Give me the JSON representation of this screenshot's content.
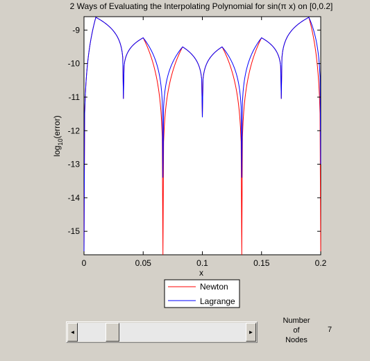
{
  "window": {
    "background": "#d4d0c8"
  },
  "chart_data": {
    "type": "line",
    "title": "2 Ways of Evaluating the Interpolating Polynomial for sin(π x) on [0,0.2]",
    "xlabel": "x",
    "ylabel_main": "log",
    "ylabel_sub": "10",
    "ylabel_rest": "(error)",
    "xlim": [
      0,
      0.2
    ],
    "ylim": [
      -15.7,
      -8.6
    ],
    "xticks": [
      0,
      0.05,
      0.1,
      0.15,
      0.2
    ],
    "xtick_labels": [
      "0",
      "0.05",
      "0.1",
      "0.15",
      "0.2"
    ],
    "yticks": [
      -9,
      -10,
      -11,
      -12,
      -13,
      -14,
      -15
    ],
    "ytick_labels": [
      "-9",
      "-10",
      "-11",
      "-12",
      "-13",
      "-14",
      "-15"
    ],
    "grid": false,
    "legend_placement": "bottom-center",
    "nodes": [
      0,
      0.0333,
      0.0667,
      0.1,
      0.1333,
      0.1667,
      0.2
    ],
    "series": [
      {
        "name": "Newton",
        "color": "#ff0000",
        "shape": "log10 error curve, identical to Lagrange between nodes",
        "minima_at_nodes": [
          -15.7,
          -11.05,
          -15.7,
          -11.6,
          -15.7,
          -11.05,
          -15.7
        ]
      },
      {
        "name": "Lagrange",
        "color": "#0000ff",
        "peaks": [
          [
            0.01,
            -8.62
          ],
          [
            0.05,
            -9.23
          ],
          [
            0.0833,
            -9.5
          ],
          [
            0.1167,
            -9.5
          ],
          [
            0.15,
            -9.23
          ],
          [
            0.19,
            -8.62
          ]
        ],
        "minima_at_nodes": [
          -15.7,
          -11.05,
          -13.4,
          -11.6,
          -13.4,
          -11.05,
          -13.0
        ]
      }
    ]
  },
  "controls": {
    "slider": {
      "value": 7,
      "min": 2,
      "max": 30,
      "left_arrow": "◄",
      "right_arrow": "►"
    },
    "nodes_label": "Number\nof\nNodes",
    "nodes_value": "7"
  }
}
